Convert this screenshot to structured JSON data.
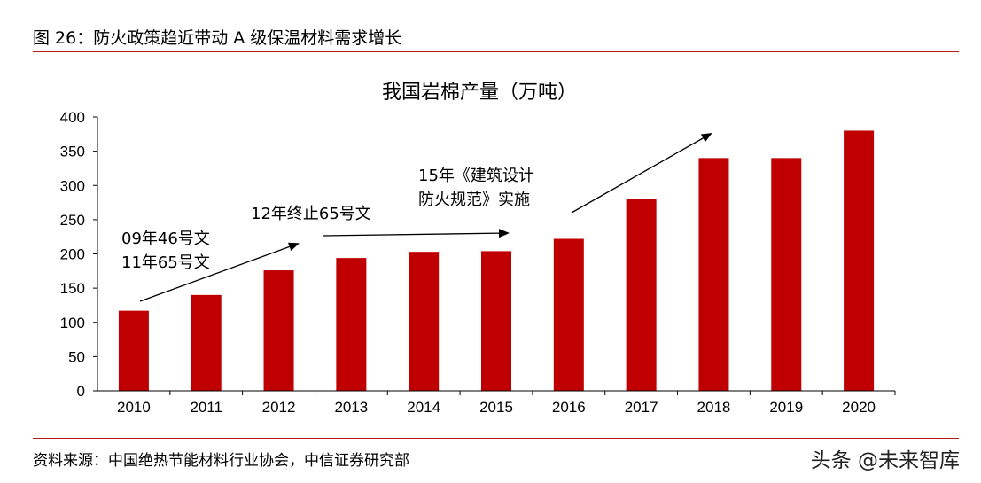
{
  "figure": {
    "title": "图 26：防火政策趋近带动 A 级保温材料需求增长",
    "source": "资料来源：中国绝热节能材料行业协会，中信证券研究部",
    "watermark": "头条 @未来智库"
  },
  "colors": {
    "bar": "#c00000",
    "rule": "#b31b1b"
  },
  "chart_data": {
    "type": "bar",
    "title": "我国岩棉产量（万吨）",
    "xlabel": "",
    "ylabel": "",
    "categories": [
      "2010",
      "2011",
      "2012",
      "2013",
      "2014",
      "2015",
      "2016",
      "2017",
      "2018",
      "2019",
      "2020"
    ],
    "values": [
      117,
      140,
      176,
      194,
      203,
      204,
      222,
      280,
      340,
      340,
      380
    ],
    "ylim": [
      0,
      400
    ],
    "yticks": [
      0,
      50,
      100,
      150,
      200,
      250,
      300,
      350,
      400
    ],
    "grid": false,
    "legend": "none",
    "annotations": [
      {
        "lines": [
          "09年46号文",
          "11年65号文"
        ]
      },
      {
        "lines": [
          "12年终止65号文"
        ]
      },
      {
        "lines": [
          "15年《建筑设计",
          "防火规范》实施"
        ]
      }
    ]
  }
}
